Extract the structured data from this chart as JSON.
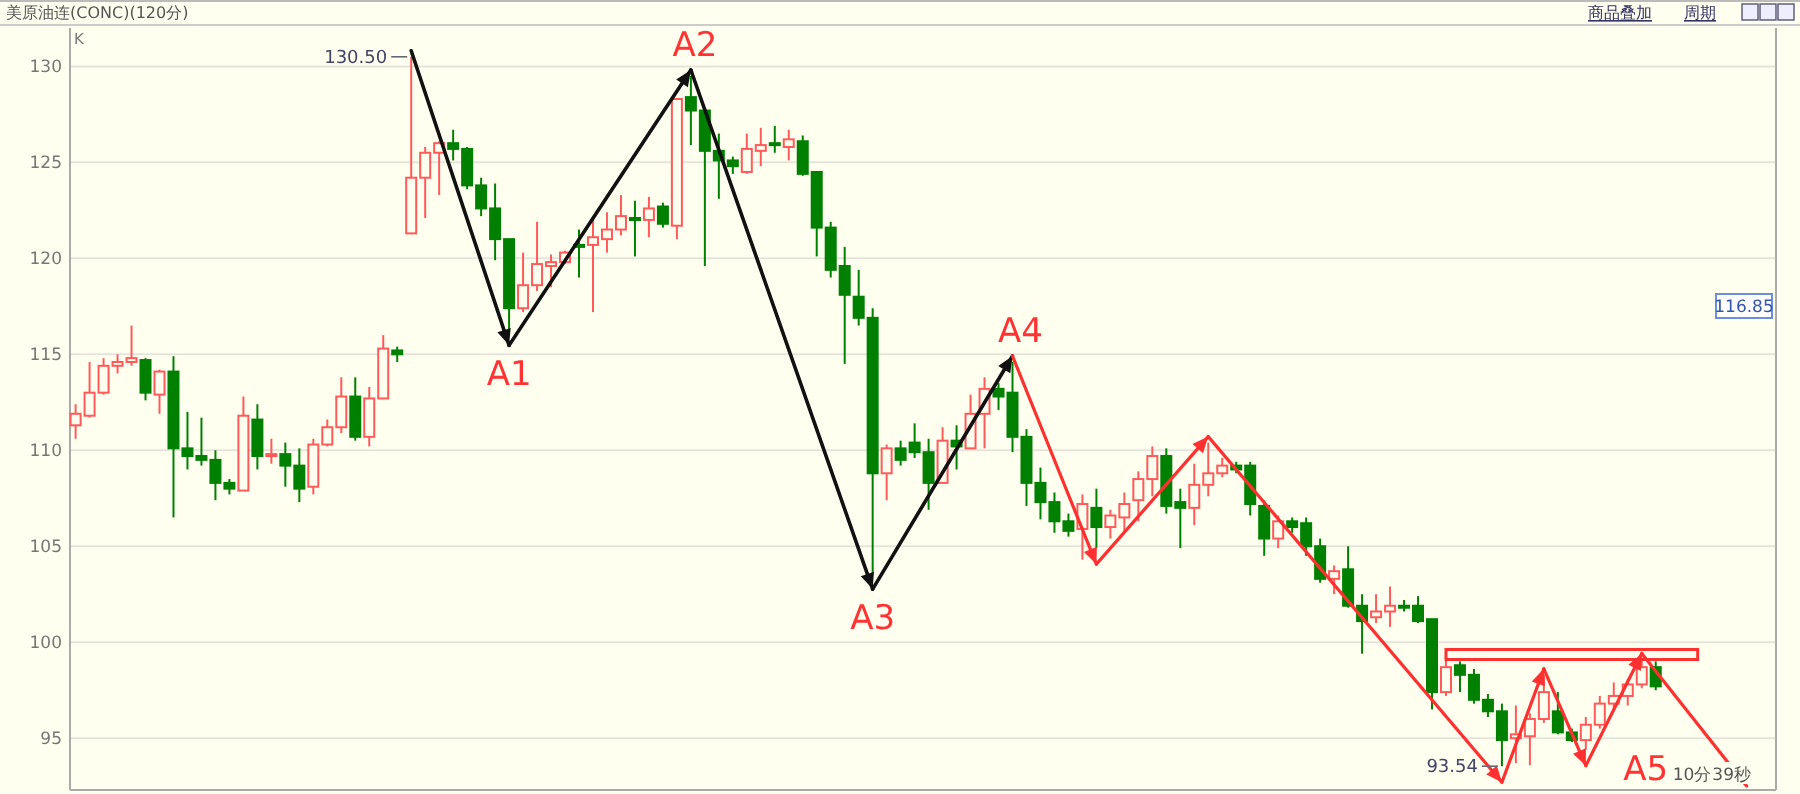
{
  "chart_data": {
    "type": "candlestick",
    "title": "美原油连(CONC)(120分)",
    "ylabel": "K",
    "categories": [
      null,
      null,
      null,
      null,
      null,
      null,
      null,
      null,
      null,
      null,
      null,
      null,
      null,
      null,
      null,
      null,
      null,
      null,
      null,
      null,
      null,
      null,
      null,
      null,
      null,
      null,
      null,
      null,
      null,
      null,
      null,
      null,
      null,
      null,
      null,
      null,
      null,
      null,
      null,
      null,
      null,
      null,
      null,
      null,
      null,
      null,
      null,
      null,
      null,
      null,
      null,
      null,
      null,
      null,
      null,
      null,
      null,
      null,
      null,
      null,
      null,
      null,
      null,
      null,
      null,
      null,
      null,
      null,
      null,
      null,
      null,
      null,
      null,
      null,
      null,
      null,
      null,
      null,
      null,
      null,
      null,
      null,
      null,
      null,
      null,
      null,
      null,
      null,
      null,
      null,
      null,
      null,
      null,
      null,
      null,
      null,
      null,
      null,
      null,
      null,
      null,
      null,
      null,
      null,
      null,
      null,
      null,
      null,
      null,
      null,
      null,
      null,
      null,
      null
    ],
    "ohlc": [
      [
        111.3,
        112.4,
        110.6,
        111.9
      ],
      [
        111.8,
        114.6,
        111.7,
        113.0
      ],
      [
        113.0,
        114.8,
        112.9,
        114.4
      ],
      [
        114.4,
        115.0,
        114.0,
        114.6
      ],
      [
        114.6,
        116.5,
        114.4,
        114.8
      ],
      [
        114.7,
        114.8,
        112.6,
        113.0
      ],
      [
        112.9,
        114.2,
        111.9,
        114.1
      ],
      [
        114.1,
        114.9,
        106.5,
        110.1
      ],
      [
        110.1,
        112.0,
        109.0,
        109.7
      ],
      [
        109.7,
        111.7,
        109.2,
        109.5
      ],
      [
        109.5,
        110.0,
        107.4,
        108.3
      ],
      [
        108.3,
        108.5,
        107.7,
        108.0
      ],
      [
        107.9,
        112.8,
        107.9,
        111.8
      ],
      [
        111.6,
        112.4,
        109.0,
        109.7
      ],
      [
        109.7,
        110.6,
        109.3,
        109.8
      ],
      [
        109.8,
        110.4,
        108.1,
        109.2
      ],
      [
        109.2,
        110.1,
        107.3,
        108.0
      ],
      [
        108.1,
        110.6,
        107.7,
        110.3
      ],
      [
        110.3,
        111.6,
        110.2,
        111.2
      ],
      [
        111.2,
        113.8,
        110.9,
        112.8
      ],
      [
        112.8,
        113.8,
        110.5,
        110.7
      ],
      [
        110.7,
        113.3,
        110.2,
        112.7
      ],
      [
        112.7,
        116.0,
        112.7,
        115.3
      ],
      [
        115.2,
        115.4,
        114.6,
        115.0
      ],
      [
        121.3,
        130.5,
        121.3,
        124.2
      ],
      [
        124.2,
        125.8,
        122.1,
        125.5
      ],
      [
        125.5,
        126.1,
        123.3,
        126.0
      ],
      [
        126.0,
        126.7,
        125.1,
        125.7
      ],
      [
        125.7,
        125.8,
        123.6,
        123.8
      ],
      [
        123.8,
        124.2,
        122.2,
        122.6
      ],
      [
        122.6,
        123.9,
        119.9,
        121.0
      ],
      [
        121.0,
        121.0,
        116.3,
        117.4
      ],
      [
        117.4,
        120.3,
        117.2,
        118.6
      ],
      [
        118.6,
        121.9,
        118.3,
        119.7
      ],
      [
        119.6,
        120.2,
        118.5,
        119.8
      ],
      [
        119.8,
        120.4,
        119.7,
        120.3
      ],
      [
        120.7,
        121.5,
        119.0,
        120.6
      ],
      [
        120.7,
        122.0,
        117.2,
        121.1
      ],
      [
        121.0,
        122.4,
        120.3,
        121.5
      ],
      [
        121.5,
        123.3,
        121.2,
        122.2
      ],
      [
        122.1,
        123.0,
        120.1,
        122.0
      ],
      [
        122.0,
        123.2,
        121.1,
        122.6
      ],
      [
        122.7,
        122.9,
        121.6,
        121.8
      ],
      [
        121.7,
        128.3,
        121.0,
        128.3
      ],
      [
        128.4,
        129.5,
        125.9,
        127.7
      ],
      [
        127.7,
        127.7,
        119.6,
        125.6
      ],
      [
        125.6,
        126.5,
        123.1,
        125.1
      ],
      [
        125.1,
        125.3,
        124.4,
        124.8
      ],
      [
        124.5,
        126.5,
        124.4,
        125.7
      ],
      [
        125.6,
        126.8,
        124.8,
        125.9
      ],
      [
        126.0,
        126.9,
        125.5,
        125.9
      ],
      [
        125.8,
        126.7,
        125.1,
        126.2
      ],
      [
        126.1,
        126.4,
        124.3,
        124.4
      ],
      [
        124.5,
        124.5,
        120.1,
        121.6
      ],
      [
        121.6,
        121.9,
        119.0,
        119.4
      ],
      [
        119.6,
        120.6,
        114.5,
        118.1
      ],
      [
        118.0,
        119.4,
        116.5,
        116.9
      ],
      [
        116.9,
        117.4,
        103.6,
        108.8
      ],
      [
        108.8,
        110.3,
        107.4,
        110.1
      ],
      [
        110.1,
        110.5,
        109.2,
        109.5
      ],
      [
        110.4,
        111.4,
        109.6,
        109.9
      ],
      [
        109.9,
        110.6,
        106.9,
        108.3
      ],
      [
        108.3,
        111.2,
        108.3,
        110.5
      ],
      [
        110.5,
        111.3,
        109.0,
        110.2
      ],
      [
        110.1,
        112.9,
        110.1,
        111.9
      ],
      [
        111.9,
        113.8,
        110.1,
        113.2
      ],
      [
        113.2,
        113.5,
        112.1,
        112.8
      ],
      [
        113.0,
        114.6,
        109.9,
        110.7
      ],
      [
        110.7,
        111.1,
        107.1,
        108.3
      ],
      [
        108.3,
        109.1,
        106.4,
        107.3
      ],
      [
        107.3,
        107.8,
        105.7,
        106.3
      ],
      [
        106.3,
        106.7,
        105.5,
        105.8
      ],
      [
        105.9,
        107.7,
        104.3,
        107.2
      ],
      [
        107.0,
        108.0,
        104.9,
        106.0
      ],
      [
        106.0,
        106.9,
        105.4,
        106.6
      ],
      [
        106.5,
        107.8,
        105.7,
        107.2
      ],
      [
        107.4,
        108.9,
        106.3,
        108.5
      ],
      [
        108.5,
        110.2,
        107.6,
        109.7
      ],
      [
        109.7,
        110.1,
        106.7,
        107.1
      ],
      [
        107.3,
        108.0,
        104.9,
        107.0
      ],
      [
        107.0,
        109.3,
        106.1,
        108.2
      ],
      [
        108.2,
        110.4,
        107.6,
        108.8
      ],
      [
        108.8,
        109.6,
        108.6,
        109.2
      ],
      [
        109.2,
        109.4,
        108.8,
        109.0
      ],
      [
        109.2,
        109.4,
        106.6,
        107.2
      ],
      [
        107.1,
        107.4,
        104.5,
        105.4
      ],
      [
        105.4,
        106.6,
        104.9,
        106.3
      ],
      [
        106.3,
        106.5,
        105.7,
        106.0
      ],
      [
        106.2,
        106.5,
        104.5,
        105.0
      ],
      [
        105.0,
        105.4,
        103.1,
        103.3
      ],
      [
        103.3,
        104.0,
        102.5,
        103.7
      ],
      [
        103.8,
        105.0,
        101.8,
        101.9
      ],
      [
        101.9,
        102.5,
        99.4,
        101.1
      ],
      [
        101.3,
        102.5,
        101.0,
        101.6
      ],
      [
        101.6,
        102.9,
        100.8,
        101.9
      ],
      [
        101.9,
        102.2,
        101.6,
        101.8
      ],
      [
        101.9,
        102.4,
        101.0,
        101.1
      ],
      [
        101.2,
        101.2,
        96.5,
        97.4
      ],
      [
        97.4,
        99.1,
        97.2,
        98.7
      ],
      [
        98.8,
        99.0,
        97.4,
        98.3
      ],
      [
        98.3,
        98.6,
        96.8,
        97.0
      ],
      [
        97.0,
        97.3,
        96.1,
        96.4
      ],
      [
        96.4,
        96.8,
        93.54,
        94.9
      ],
      [
        95.0,
        96.7,
        93.7,
        95.2
      ],
      [
        95.1,
        96.3,
        93.6,
        96.0
      ],
      [
        96.0,
        98.3,
        95.8,
        97.4
      ],
      [
        96.4,
        97.4,
        95.2,
        95.3
      ],
      [
        95.3,
        95.5,
        94.8,
        94.9
      ],
      [
        94.9,
        96.1,
        94.4,
        95.7
      ],
      [
        95.7,
        97.2,
        95.5,
        96.8
      ],
      [
        96.8,
        97.9,
        96.4,
        97.2
      ],
      [
        97.2,
        98.1,
        96.7,
        97.8
      ],
      [
        97.8,
        99.1,
        97.6,
        98.7
      ],
      [
        98.7,
        99.0,
        97.5,
        97.7
      ]
    ],
    "ylim": [
      92.3,
      132
    ],
    "yticks": [
      95,
      100,
      105,
      110,
      115,
      120,
      125,
      130
    ],
    "grid": "y",
    "tick_labels": "y",
    "annotations": [
      "130.50",
      "93.54",
      "116.85",
      "A1",
      "A2",
      "A3",
      "A4",
      "A5",
      "10分39秒",
      "商品叠加",
      "周期"
    ]
  }
}
